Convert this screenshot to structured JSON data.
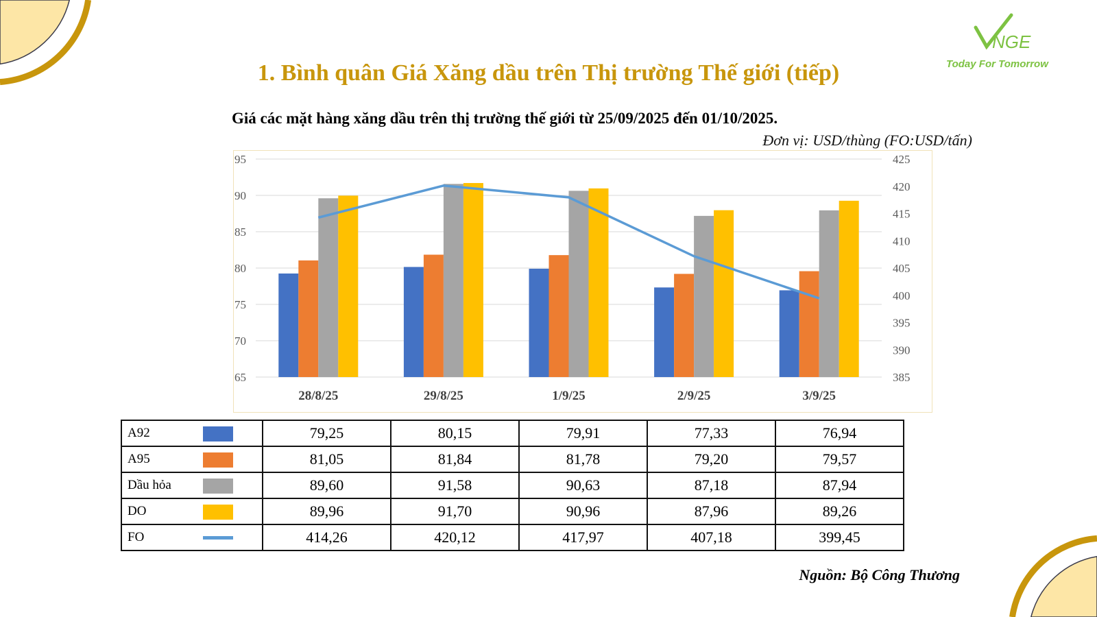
{
  "title": "1. Bình quân Giá Xăng dầu trên Thị trường Thế giới (tiếp)",
  "logo": {
    "brand": "VNGE",
    "tagline": "Today For Tomorrow"
  },
  "source": "Nguồn: Bộ Công Thương",
  "chart_data": {
    "type": "bar+line",
    "title": "Giá các mặt hàng xăng dầu trên thị trường thế giới từ 25/09/2025 đến 01/10/2025.",
    "unit": "Đơn vị: USD/thùng (FO:USD/tấn)",
    "categories": [
      "28/8/25",
      "29/8/25",
      "1/9/25",
      "2/9/25",
      "3/9/25"
    ],
    "ylim": [
      65,
      95
    ],
    "yticks": [
      65,
      70,
      75,
      80,
      85,
      90,
      95
    ],
    "y2lim": [
      385,
      425
    ],
    "y2ticks": [
      385,
      390,
      395,
      400,
      405,
      410,
      415,
      420,
      425
    ],
    "grid": true,
    "series": [
      {
        "name": "A92",
        "type": "bar",
        "axis": "left",
        "color": "#4472c4",
        "values": [
          "79,25",
          "80,15",
          "79,91",
          "77,33",
          "76,94"
        ]
      },
      {
        "name": "A95",
        "type": "bar",
        "axis": "left",
        "color": "#ed7d31",
        "values": [
          "81,05",
          "81,84",
          "81,78",
          "79,20",
          "79,57"
        ]
      },
      {
        "name": "Dầu hỏa",
        "type": "bar",
        "axis": "left",
        "color": "#a5a5a5",
        "values": [
          "89,60",
          "91,58",
          "90,63",
          "87,18",
          "87,94"
        ]
      },
      {
        "name": "DO",
        "type": "bar",
        "axis": "left",
        "color": "#ffc000",
        "values": [
          "89,96",
          "91,70",
          "90,96",
          "87,96",
          "89,26"
        ]
      },
      {
        "name": "FO",
        "type": "line",
        "axis": "right",
        "color": "#5b9bd5",
        "values": [
          "414,26",
          "420,12",
          "417,97",
          "407,18",
          "399,45"
        ]
      }
    ]
  }
}
